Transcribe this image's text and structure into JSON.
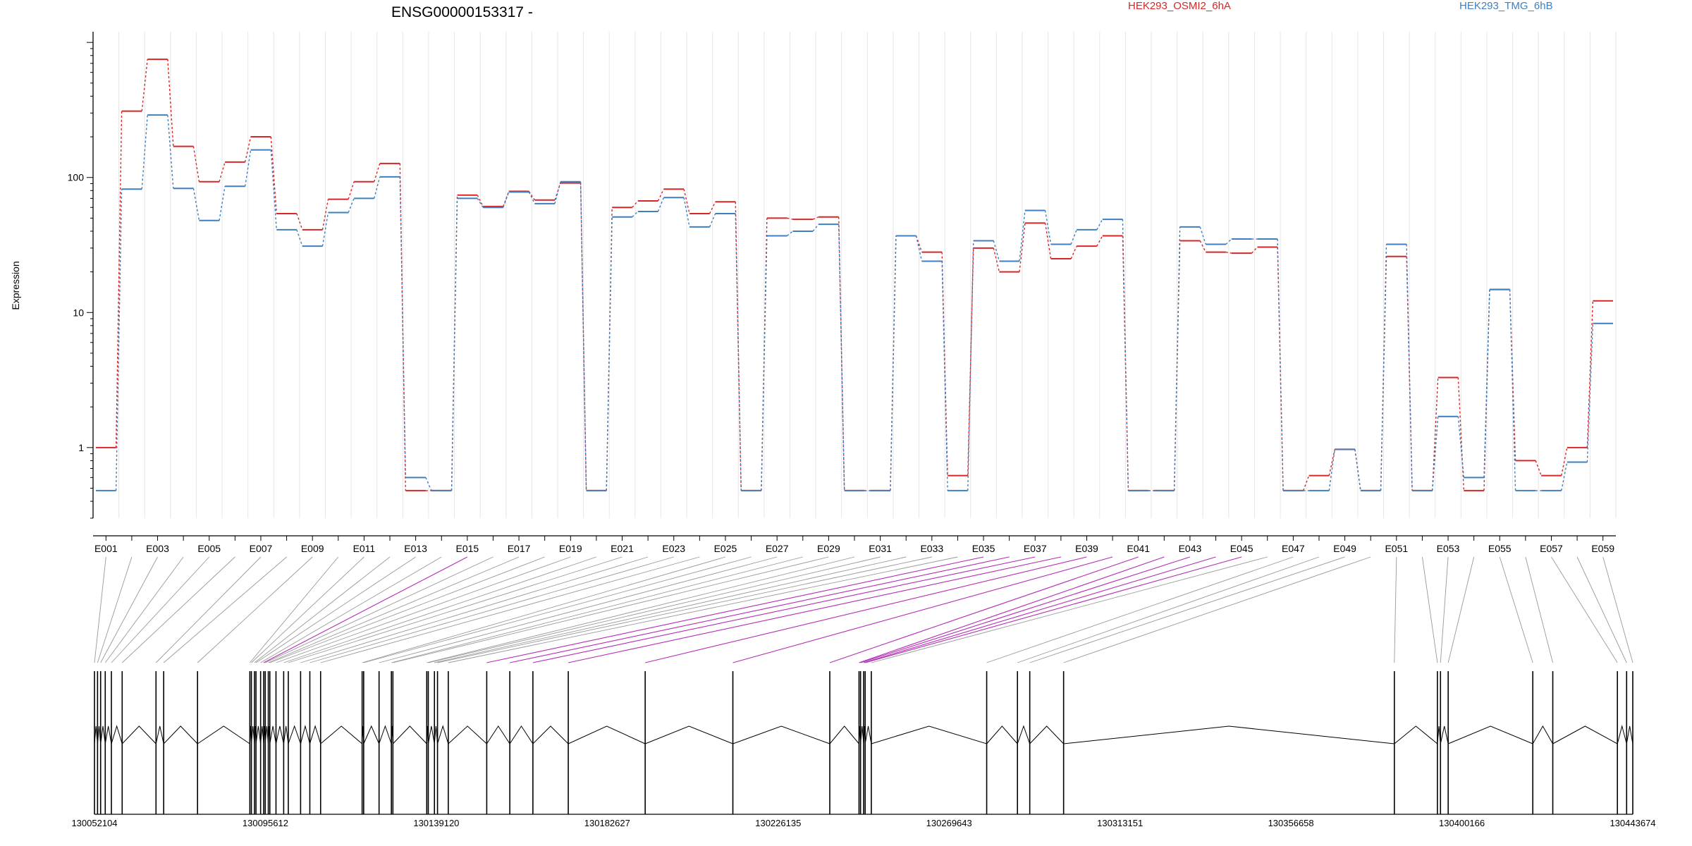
{
  "chart_data": {
    "type": "line",
    "title": "ENSG00000153317 -",
    "xlabel": "",
    "ylabel": "Expression",
    "y_scale": "log",
    "ylim": [
      0.3,
      1200
    ],
    "y_ticks": [
      1,
      10,
      100
    ],
    "y_tick_labels": [
      "1",
      "10",
      "100"
    ],
    "grid": "vertical, per exon",
    "legend_placement": "top",
    "categories": [
      "E001",
      "E002",
      "E003",
      "E004",
      "E005",
      "E006",
      "E007",
      "E008",
      "E009",
      "E010",
      "E011",
      "E012",
      "E013",
      "E014",
      "E015",
      "E016",
      "E017",
      "E018",
      "E019",
      "E020",
      "E021",
      "E022",
      "E023",
      "E024",
      "E025",
      "E026",
      "E027",
      "E028",
      "E029",
      "E030",
      "E031",
      "E032",
      "E033",
      "E034",
      "E035",
      "E036",
      "E037",
      "E038",
      "E039",
      "E040",
      "E041",
      "E042",
      "E043",
      "E044",
      "E045",
      "E046",
      "E047",
      "E048",
      "E049",
      "E050",
      "E051",
      "E052",
      "E053",
      "E054",
      "E055",
      "E056",
      "E057",
      "E058",
      "E059"
    ],
    "x_tick_labels": [
      "E001",
      "E003",
      "E005",
      "E007",
      "E009",
      "E011",
      "E013",
      "E015",
      "E017",
      "E019",
      "E021",
      "E023",
      "E025",
      "E027",
      "E029",
      "E031",
      "E033",
      "E035",
      "E037",
      "E039",
      "E041",
      "E043",
      "E045",
      "E047",
      "E049",
      "E051",
      "E053",
      "E055",
      "E057",
      "E059"
    ],
    "series": [
      {
        "name": "HEK293_OSMI2_6hA",
        "color": "#d62728",
        "values": [
          1.0,
          310,
          750,
          170,
          93,
          130,
          200,
          54,
          41,
          69,
          93,
          127,
          0.48,
          0.48,
          74,
          61,
          79,
          68,
          91,
          0.48,
          60,
          67,
          82,
          54,
          66,
          0.48,
          50,
          49,
          51,
          0.48,
          0.48,
          37,
          28,
          0.62,
          30,
          20,
          46,
          25,
          31,
          37,
          0.48,
          0.48,
          34,
          28,
          27.5,
          30.5,
          0.48,
          0.62,
          0.97,
          0.48,
          26,
          0.48,
          3.3,
          0.48,
          14.8,
          0.8,
          0.62,
          1.0,
          12.2
        ]
      },
      {
        "name": "HEK293_TMG_6hB",
        "color": "#3f7fbf",
        "values": [
          0.48,
          82,
          290,
          83,
          48,
          86,
          160,
          41,
          31,
          55,
          70,
          101,
          0.6,
          0.48,
          70,
          60,
          78,
          64,
          93,
          0.48,
          51,
          56,
          71,
          43,
          54,
          0.48,
          37,
          40,
          45,
          0.48,
          0.48,
          37,
          24,
          0.48,
          34,
          24,
          57,
          32,
          41,
          49,
          0.48,
          0.48,
          43,
          32,
          35,
          35,
          0.48,
          0.48,
          0.97,
          0.48,
          32,
          0.48,
          1.7,
          0.6,
          14.8,
          0.48,
          0.48,
          0.78,
          8.3
        ]
      }
    ],
    "genomic_axis": {
      "tick_labels": [
        "130052104",
        "130095612",
        "130139120",
        "130182627",
        "130226135",
        "130269643",
        "130313151",
        "130356658",
        "130400166",
        "130443674"
      ]
    },
    "highlighted_exons": [
      "E015",
      "E035",
      "E036",
      "E037",
      "E038",
      "E039",
      "E040",
      "E041",
      "E042",
      "E043",
      "E044",
      "E045"
    ]
  }
}
